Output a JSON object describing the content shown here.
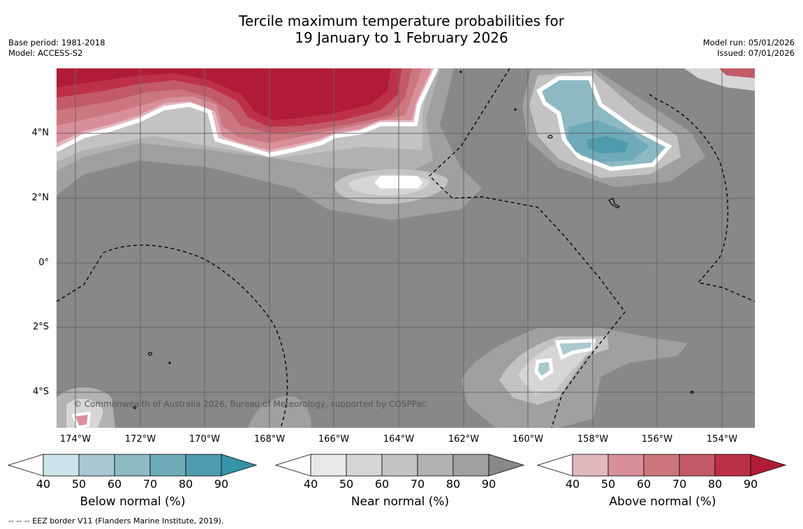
{
  "title": {
    "line1": "Tercile maximum temperature probabilities for",
    "line2": "19 January to 1 February 2026"
  },
  "meta": {
    "base_period": "Base period: 1981-2018",
    "model": "Model: ACCESS-S2",
    "model_run": "Model run: 05/01/2026",
    "issued": "Issued: 07/01/2026"
  },
  "map": {
    "lat_labels": [
      "4°N",
      "2°N",
      "0°",
      "2°S",
      "4°S"
    ],
    "lon_labels": [
      "174°W",
      "172°W",
      "170°W",
      "168°W",
      "166°W",
      "164°W",
      "162°W",
      "160°W",
      "158°W",
      "156°W",
      "154°W"
    ],
    "copyright": "© Commonwealth of Australia 2026, Bureau of Meteorology, supported by COSPPac",
    "background_color": "#888888"
  },
  "colorbars": [
    {
      "id": "below",
      "caption": "Below normal (%)",
      "ticks": [
        "40",
        "50",
        "60",
        "70",
        "80",
        "90"
      ],
      "colors": [
        "#cde3ea",
        "#a9c8cf",
        "#8db9c3",
        "#6eaab7",
        "#4e9bad",
        "#3593a8"
      ]
    },
    {
      "id": "near",
      "caption": "Near normal (%)",
      "ticks": [
        "40",
        "50",
        "60",
        "70",
        "80",
        "90"
      ],
      "colors": [
        "#e8e8e8",
        "#d6d6d6",
        "#c3c3c3",
        "#b2b2b2",
        "#a0a0a0",
        "#888888"
      ]
    },
    {
      "id": "above",
      "caption": "Above normal (%)",
      "ticks": [
        "40",
        "50",
        "60",
        "70",
        "80",
        "90"
      ],
      "colors": [
        "#e2b8bf",
        "#d98f9a",
        "#cc7780",
        "#c35a69",
        "#bd3148",
        "#b01c38"
      ]
    }
  ],
  "footnote": "--  --  -- EEZ border V11 (Flanders Marine Institute, 2019)."
}
